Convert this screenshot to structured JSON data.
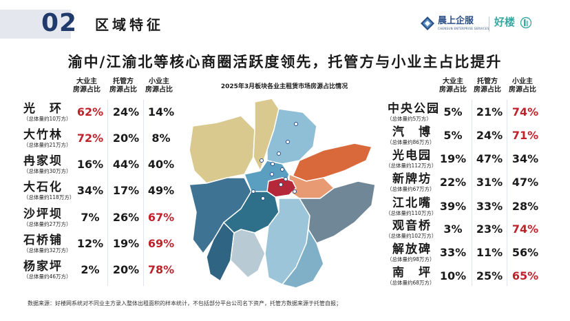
{
  "header": {
    "number": "02",
    "title": "区域特征",
    "logo1_name": "晨上企服",
    "logo1_sub": "CHENSUN ENTERPRISE SERVICES",
    "logo2_name": "好楼"
  },
  "headline": "渝中/江渝北等核心商圈活跃度领先，托管方与小业主占比提升",
  "map_title": "2025年3月板块各业主租赁市场房源占比情况",
  "column_headers": [
    "大业主房源占比",
    "托管方房源占比",
    "小业主房源占比"
  ],
  "column_headers_split": [
    [
      "大业主",
      "房源占比"
    ],
    [
      "托管方",
      "房源占比"
    ],
    [
      "小业主",
      "房源占比"
    ]
  ],
  "left_rows": [
    {
      "name": "光　环",
      "volume": "（总体量约10万方）",
      "big": "62%",
      "agent": "24%",
      "small": "14%",
      "highlight": "big"
    },
    {
      "name": "大竹林",
      "volume": "（总体量约21万方）",
      "big": "72%",
      "agent": "20%",
      "small": "8%",
      "highlight": "big"
    },
    {
      "name": "冉家坝",
      "volume": "（总体量约30万方）",
      "big": "16%",
      "agent": "44%",
      "small": "40%",
      "highlight": ""
    },
    {
      "name": "大石化",
      "volume": "（总体量约118万方）",
      "big": "34%",
      "agent": "17%",
      "small": "49%",
      "highlight": ""
    },
    {
      "name": "沙坪坝",
      "volume": "（总体量约27万方）",
      "big": "7%",
      "agent": "26%",
      "small": "67%",
      "highlight": "small"
    },
    {
      "name": "石桥铺",
      "volume": "（总体量约32万方）",
      "big": "12%",
      "agent": "19%",
      "small": "69%",
      "highlight": "small"
    },
    {
      "name": "杨家坪",
      "volume": "（总体量约46万方）",
      "big": "2%",
      "agent": "20%",
      "small": "78%",
      "highlight": "small"
    }
  ],
  "right_rows": [
    {
      "name": "中央公园",
      "volume": "（总体量约5万方）",
      "big": "5%",
      "agent": "21%",
      "small": "74%",
      "highlight": "small"
    },
    {
      "name": "汽　博",
      "volume": "（总体量约86万方）",
      "big": "5%",
      "agent": "24%",
      "small": "71%",
      "highlight": "small"
    },
    {
      "name": "光电园",
      "volume": "（总体量约112万方）",
      "big": "19%",
      "agent": "47%",
      "small": "34%",
      "highlight": ""
    },
    {
      "name": "新牌坊",
      "volume": "（总体量约67万方）",
      "big": "22%",
      "agent": "31%",
      "small": "47%",
      "highlight": ""
    },
    {
      "name": "江北嘴",
      "volume": "（总体量约110万方）",
      "big": "39%",
      "agent": "33%",
      "small": "28%",
      "highlight": ""
    },
    {
      "name": "观音桥",
      "volume": "（总体量约102万方）",
      "big": "3%",
      "agent": "23%",
      "small": "74%",
      "highlight": "small"
    },
    {
      "name": "解放碑",
      "volume": "（总体量约98万方）",
      "big": "33%",
      "agent": "11%",
      "small": "56%",
      "highlight": ""
    },
    {
      "name": "南　坪",
      "volume": "（总体量约68万方）",
      "big": "10%",
      "agent": "25%",
      "small": "65%",
      "highlight": "small"
    }
  ],
  "source_note": "数据来源：好楼网系统对不同业主方录入整体出租面积的样本统计，不包括部分平台公司名下资产，托管方数据来源于托管自报；",
  "colors": {
    "accent": "#1f3a6b",
    "highlight": "#c0222b",
    "map_khaki": "#d9c98e",
    "map_blue": "#4a86a8",
    "map_orange": "#d9683a",
    "map_red": "#b5283a",
    "map_gray": "#8aa0ae"
  }
}
